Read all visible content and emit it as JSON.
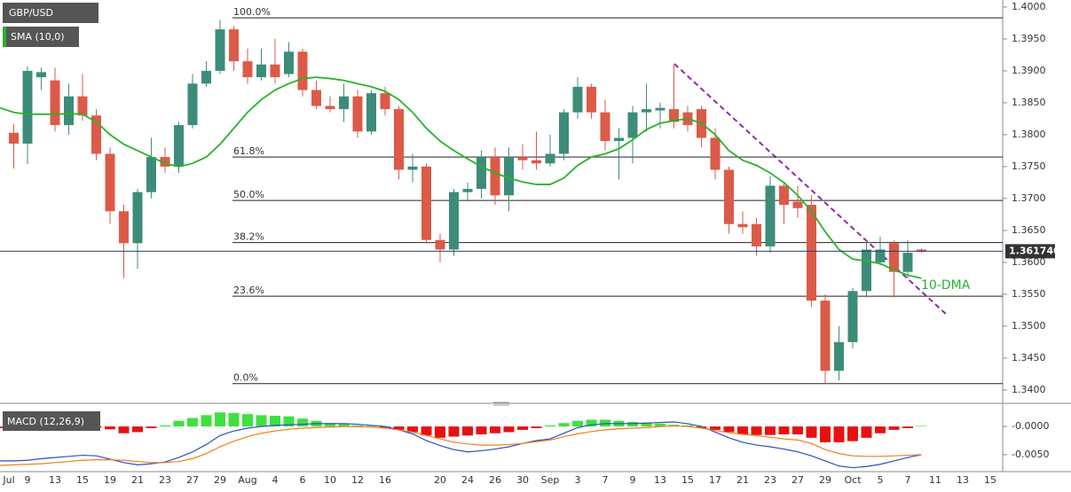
{
  "chart_data": [
    {
      "type": "candlestick",
      "title": "GBP/USD",
      "categories": [
        "Jul",
        null,
        "9",
        null,
        "13",
        null,
        "15",
        null,
        "19",
        null,
        "21",
        null,
        "23",
        null,
        "27",
        null,
        "29",
        null,
        "Aug",
        null,
        "4",
        null,
        "6",
        null,
        "10",
        null,
        "12",
        null,
        "16",
        null,
        null,
        null,
        "20",
        null,
        "24",
        null,
        "26",
        null,
        "30",
        null,
        "Sep",
        null,
        "3",
        null,
        "7",
        null,
        "9",
        null,
        "13",
        null,
        "15",
        null,
        "17",
        null,
        "21",
        null,
        "23",
        null,
        "27",
        null,
        "29",
        null,
        "Oct",
        null,
        "5",
        null,
        "7",
        null,
        "11",
        null,
        "13",
        null,
        "15"
      ],
      "open": [
        null,
        1.3803,
        1.3786,
        1.389,
        1.3885,
        1.3815,
        1.386,
        1.383,
        1.377,
        1.368,
        1.363,
        1.371,
        1.3765,
        1.375,
        1.3815,
        1.388,
        1.39,
        1.3965,
        1.3915,
        1.389,
        1.391,
        1.3895,
        1.393,
        1.387,
        1.3845,
        1.384,
        1.386,
        1.3805,
        1.3865,
        1.384,
        1.3745,
        1.375,
        1.3635,
        1.362,
        1.371,
        1.3715,
        1.3765,
        1.3705,
        1.3765,
        1.376,
        1.3755,
        1.377,
        1.3835,
        1.3875,
        1.3835,
        1.379,
        1.3795,
        1.3835,
        1.3838,
        1.384,
        1.3835,
        1.384,
        1.3795,
        1.3745,
        1.366,
        1.366,
        1.3625,
        1.372,
        1.3695,
        1.369,
        1.354,
        1.343,
        1.3475,
        1.3555,
        1.36,
        1.363,
        1.3585,
        1.362,
        null,
        null,
        null,
        null,
        null
      ],
      "high": [
        null,
        1.3817,
        1.3907,
        1.3905,
        1.3905,
        1.388,
        1.3895,
        1.384,
        1.378,
        1.369,
        1.3715,
        1.3795,
        1.378,
        1.382,
        1.3895,
        1.3915,
        1.398,
        1.397,
        1.3935,
        1.3935,
        1.395,
        1.3945,
        1.3935,
        1.3885,
        1.386,
        1.388,
        1.387,
        1.387,
        1.3875,
        1.3845,
        1.377,
        1.3755,
        1.3645,
        1.3715,
        1.3725,
        1.3775,
        1.378,
        1.378,
        1.3785,
        1.3805,
        1.38,
        1.384,
        1.389,
        1.388,
        1.3855,
        1.381,
        1.3845,
        1.388,
        1.385,
        1.391,
        1.3845,
        1.3845,
        1.381,
        1.375,
        1.368,
        1.367,
        1.3735,
        1.3725,
        1.372,
        1.3705,
        1.355,
        1.35,
        1.356,
        1.3635,
        1.364,
        1.3635,
        1.3635,
        1.3622,
        null,
        null,
        null,
        null,
        null
      ],
      "low": [
        null,
        1.3747,
        1.3754,
        1.387,
        1.3805,
        1.38,
        1.3822,
        1.376,
        1.366,
        1.3575,
        1.359,
        1.37,
        1.374,
        1.374,
        1.381,
        1.3875,
        1.3895,
        1.39,
        1.388,
        1.3885,
        1.388,
        1.389,
        1.386,
        1.384,
        1.3835,
        1.382,
        1.3795,
        1.38,
        1.383,
        1.373,
        1.3725,
        1.363,
        1.36,
        1.361,
        1.3695,
        1.37,
        1.369,
        1.368,
        1.3745,
        1.3745,
        1.375,
        1.376,
        1.3825,
        1.3825,
        1.3775,
        1.373,
        1.3755,
        1.3805,
        1.381,
        1.381,
        1.3805,
        1.378,
        1.373,
        1.3645,
        1.3645,
        1.361,
        1.3615,
        1.366,
        1.367,
        1.353,
        1.341,
        1.3415,
        1.3465,
        1.3545,
        1.3595,
        1.3545,
        1.3575,
        1.3615,
        null,
        null,
        null,
        null,
        null
      ],
      "close": [
        null,
        1.3786,
        1.39,
        1.3898,
        1.3815,
        1.386,
        1.383,
        1.377,
        1.368,
        1.363,
        1.371,
        1.3765,
        1.375,
        1.3815,
        1.388,
        1.39,
        1.3965,
        1.3915,
        1.389,
        1.391,
        1.389,
        1.393,
        1.387,
        1.3845,
        1.384,
        1.386,
        1.3805,
        1.3865,
        1.384,
        1.3745,
        1.375,
        1.3635,
        1.362,
        1.371,
        1.3715,
        1.3765,
        1.3705,
        1.3765,
        1.376,
        1.3755,
        1.377,
        1.3835,
        1.3875,
        1.3835,
        1.379,
        1.3795,
        1.3835,
        1.384,
        1.3842,
        1.382,
        1.3815,
        1.3795,
        1.3745,
        1.366,
        1.3655,
        1.3625,
        1.372,
        1.369,
        1.3685,
        1.354,
        1.343,
        1.3475,
        1.3555,
        1.362,
        1.362,
        1.3585,
        1.3615,
        1.3617,
        null,
        null,
        null,
        null,
        null
      ],
      "up_color": "#3d8c7a",
      "down_color": "#dc5a48",
      "series": [
        {
          "name": "SMA (10,0)",
          "color": "#27b32b",
          "values": [
            1.3842,
            1.3835,
            1.3832,
            1.3832,
            1.3832,
            1.3833,
            1.3832,
            1.382,
            1.38,
            1.3785,
            1.3775,
            1.3765,
            1.3755,
            1.375,
            1.3755,
            1.3765,
            1.3785,
            1.381,
            1.3835,
            1.3855,
            1.387,
            1.388,
            1.3888,
            1.389,
            1.3888,
            1.3885,
            1.388,
            1.3875,
            1.3868,
            1.3855,
            1.3835,
            1.381,
            1.379,
            1.3775,
            1.3762,
            1.375,
            1.374,
            1.3732,
            1.3726,
            1.3722,
            1.3722,
            1.3732,
            1.3752,
            1.3765,
            1.377,
            1.3778,
            1.3792,
            1.3808,
            1.3818,
            1.3822,
            1.3825,
            1.3818,
            1.38,
            1.3775,
            1.376,
            1.3752,
            1.374,
            1.3725,
            1.3705,
            1.368,
            1.3648,
            1.362,
            1.3605,
            1.3602,
            1.3598,
            1.3588,
            1.358,
            1.3575,
            null,
            null,
            null,
            null,
            null
          ]
        }
      ],
      "ylim": [
        1.3386,
        1.4011
      ],
      "yticks": [
        {
          "value": 1.4,
          "label": "1.4000"
        },
        {
          "value": 1.395,
          "label": "1.3950"
        },
        {
          "value": 1.39,
          "label": "1.3900"
        },
        {
          "value": 1.385,
          "label": "1.3850"
        },
        {
          "value": 1.38,
          "label": "1.3800"
        },
        {
          "value": 1.375,
          "label": "1.3750"
        },
        {
          "value": 1.37,
          "label": "1.3700"
        },
        {
          "value": 1.365,
          "label": "1.3650"
        },
        {
          "value": 1.36,
          "label": "1.3600"
        },
        {
          "value": 1.355,
          "label": "1.3550"
        },
        {
          "value": 1.35,
          "label": "1.3500"
        },
        {
          "value": 1.345,
          "label": "1.3450"
        },
        {
          "value": 1.34,
          "label": "1.3400"
        }
      ],
      "levels": [
        {
          "label": "100.0%",
          "value": 1.3983
        },
        {
          "label": "61.8%",
          "value": 1.3765
        },
        {
          "label": "50.0%",
          "value": 1.3697
        },
        {
          "label": "38.2%",
          "value": 1.3631
        },
        {
          "label": "23.6%",
          "value": 1.3547
        },
        {
          "label": "0.0%",
          "value": 1.341
        }
      ],
      "last_price": {
        "value": 1.36174,
        "label": "1.361740"
      },
      "annotation": "10-DMA"
    },
    {
      "type": "macd",
      "title": "MACD (12,26,9)",
      "histogram": {
        "up_color": "#3fe03f",
        "down_color": "#e81010",
        "values": [
          -0.0003,
          0.0002,
          0.0003,
          0.0003,
          0.0002,
          0.0001,
          -0.0001,
          -0.0002,
          -0.0005,
          -0.0012,
          -0.001,
          -0.0003,
          0.0002,
          0.001,
          0.0015,
          0.002,
          0.0025,
          0.0024,
          0.0022,
          0.002,
          0.0019,
          0.0018,
          0.0014,
          0.001,
          0.0006,
          0.0004,
          0.0002,
          0.0001,
          -0.0002,
          -0.0006,
          -0.001,
          -0.0016,
          -0.002,
          -0.0018,
          -0.0016,
          -0.0014,
          -0.0012,
          -0.001,
          -0.0006,
          -0.0003,
          0.0002,
          0.0006,
          0.001,
          0.0012,
          0.0012,
          0.001,
          0.0008,
          0.0007,
          0.0005,
          0.0003,
          0.0002,
          -0.0002,
          -0.0006,
          -0.001,
          -0.0014,
          -0.0015,
          -0.0015,
          -0.0014,
          -0.0014,
          -0.002,
          -0.0028,
          -0.0028,
          -0.0026,
          -0.002,
          -0.0012,
          -0.0006,
          -0.0003,
          0.0001,
          null,
          null,
          null,
          null,
          null
        ]
      },
      "macd_line": {
        "color": "#2a4fc4",
        "values": [
          -0.0061,
          -0.0061,
          -0.006,
          -0.0057,
          -0.0055,
          -0.0053,
          -0.0051,
          -0.0052,
          -0.0058,
          -0.0064,
          -0.0068,
          -0.0066,
          -0.0063,
          -0.0055,
          -0.0045,
          -0.0032,
          -0.0016,
          -0.0008,
          -0.0003,
          0.0,
          0.0002,
          0.0003,
          0.0004,
          0.0005,
          0.0005,
          0.0005,
          0.0004,
          0.0002,
          0.0,
          -0.0006,
          -0.0013,
          -0.0025,
          -0.0034,
          -0.0041,
          -0.0045,
          -0.0043,
          -0.004,
          -0.0036,
          -0.003,
          -0.0025,
          -0.0022,
          -0.0012,
          -0.0002,
          0.0003,
          0.0005,
          0.0005,
          0.0005,
          0.0006,
          0.0007,
          0.0008,
          0.0005,
          0.0,
          -0.001,
          -0.002,
          -0.0028,
          -0.0033,
          -0.0036,
          -0.004,
          -0.0045,
          -0.0052,
          -0.0061,
          -0.007,
          -0.0073,
          -0.0071,
          -0.0067,
          -0.0061,
          -0.0055,
          -0.005,
          null,
          null,
          null,
          null,
          null
        ]
      },
      "signal_line": {
        "color": "#f0801a",
        "values": [
          -0.0069,
          -0.0068,
          -0.0067,
          -0.0066,
          -0.0064,
          -0.0062,
          -0.006,
          -0.0059,
          -0.0059,
          -0.006,
          -0.0062,
          -0.0064,
          -0.0064,
          -0.0062,
          -0.0057,
          -0.0048,
          -0.0036,
          -0.0026,
          -0.0018,
          -0.0012,
          -0.0008,
          -0.0005,
          -0.0003,
          -0.0002,
          -0.0001,
          0.0,
          0.0,
          -0.0001,
          -0.0003,
          -0.0006,
          -0.001,
          -0.0016,
          -0.0022,
          -0.0028,
          -0.0031,
          -0.0033,
          -0.0033,
          -0.0032,
          -0.003,
          -0.0027,
          -0.0024,
          -0.0018,
          -0.0013,
          -0.0009,
          -0.0006,
          -0.0004,
          -0.0003,
          -0.0002,
          0.0,
          0.0001,
          0.0,
          -0.0003,
          -0.0007,
          -0.0011,
          -0.0014,
          -0.0016,
          -0.0019,
          -0.0022,
          -0.0024,
          -0.003,
          -0.0041,
          -0.0048,
          -0.0052,
          -0.0053,
          -0.0053,
          -0.0052,
          -0.0051,
          -0.005,
          null,
          null,
          null,
          null,
          null
        ]
      },
      "ylim": [
        -0.008,
        0.003
      ],
      "yticks": [
        {
          "value": 0,
          "label": "-0.0000"
        },
        {
          "value": -0.005,
          "label": "-0.0050"
        }
      ]
    }
  ]
}
